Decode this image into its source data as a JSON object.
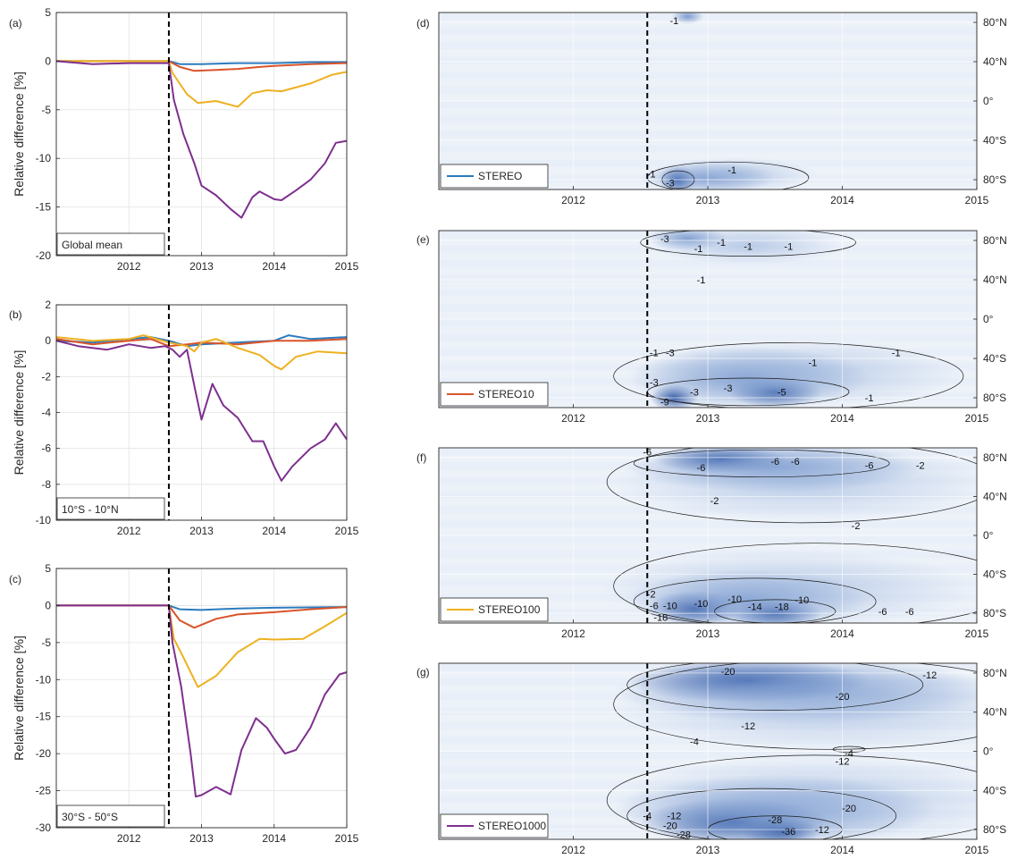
{
  "chart_data": [
    {
      "panel": "(a)",
      "type": "line",
      "region_label": "Global mean",
      "ylabel": "Relative difference [%]",
      "xlim": [
        2011.0,
        2015.0
      ],
      "ylim": [
        -20,
        5
      ],
      "yticks": [
        5,
        0,
        -5,
        -10,
        -15,
        -20
      ],
      "xticks": [
        2012,
        2013,
        2014,
        2015
      ],
      "event_line_x": 2012.55,
      "grid": true,
      "series": [
        {
          "key": "STEREO",
          "color": "#2b7bbd",
          "x": [
            2011.0,
            2012.55,
            2012.7,
            2013.0,
            2013.5,
            2014.0,
            2014.5,
            2015.0
          ],
          "y": [
            0,
            0,
            -0.3,
            -0.3,
            -0.2,
            -0.2,
            -0.1,
            -0.1
          ]
        },
        {
          "key": "STEREO10",
          "color": "#d9542b",
          "x": [
            2011.0,
            2012.55,
            2012.7,
            2012.9,
            2013.2,
            2013.5,
            2013.8,
            2014.0,
            2014.5,
            2015.0
          ],
          "y": [
            0,
            0,
            -0.6,
            -1.0,
            -0.9,
            -0.8,
            -0.6,
            -0.5,
            -0.3,
            -0.2
          ]
        },
        {
          "key": "STEREO100",
          "color": "#edb120",
          "x": [
            2011.0,
            2012.55,
            2012.6,
            2012.8,
            2012.95,
            2013.2,
            2013.5,
            2013.7,
            2013.9,
            2014.1,
            2014.5,
            2014.8,
            2015.0
          ],
          "y": [
            0,
            0,
            -1.2,
            -3.4,
            -4.3,
            -4.1,
            -4.7,
            -3.3,
            -3.0,
            -3.1,
            -2.3,
            -1.4,
            -1.1
          ]
        },
        {
          "key": "STEREO1000",
          "color": "#7e2f8e",
          "x": [
            2011.0,
            2011.5,
            2012.0,
            2012.4,
            2012.55,
            2012.62,
            2012.75,
            2012.9,
            2013.0,
            2013.2,
            2013.4,
            2013.55,
            2013.7,
            2013.8,
            2014.0,
            2014.1,
            2014.3,
            2014.5,
            2014.7,
            2014.85,
            2015.0
          ],
          "y": [
            0,
            -0.3,
            -0.2,
            -0.2,
            -0.2,
            -4.0,
            -7.5,
            -10.5,
            -12.8,
            -13.8,
            -15.2,
            -16.1,
            -14.0,
            -13.4,
            -14.2,
            -14.3,
            -13.3,
            -12.2,
            -10.5,
            -8.4,
            -8.2
          ]
        }
      ]
    },
    {
      "panel": "(b)",
      "type": "line",
      "region_label": "10°S - 10°N",
      "ylabel": "Relative difference [%]",
      "xlim": [
        2011.0,
        2015.0
      ],
      "ylim": [
        -10,
        2
      ],
      "yticks": [
        2,
        0,
        -2,
        -4,
        -6,
        -8,
        -10
      ],
      "xticks": [
        2012,
        2013,
        2014,
        2015
      ],
      "event_line_x": 2012.55,
      "grid": true,
      "series": [
        {
          "key": "STEREO",
          "color": "#2b7bbd",
          "x": [
            2011.0,
            2011.5,
            2012.0,
            2012.3,
            2012.55,
            2012.8,
            2013.0,
            2013.5,
            2014.0,
            2014.2,
            2014.5,
            2015.0
          ],
          "y": [
            0,
            -0.1,
            0.1,
            0.2,
            0,
            -0.3,
            -0.2,
            -0.1,
            0,
            0.3,
            0.1,
            0.2
          ]
        },
        {
          "key": "STEREO10",
          "color": "#d9542b",
          "x": [
            2011.0,
            2011.5,
            2012.0,
            2012.3,
            2012.55,
            2012.8,
            2013.0,
            2013.5,
            2014.0,
            2014.5,
            2015.0
          ],
          "y": [
            0.1,
            -0.2,
            0,
            0.1,
            -0.3,
            -0.2,
            -0.1,
            -0.2,
            0,
            0,
            0.1
          ]
        },
        {
          "key": "STEREO100",
          "color": "#edb120",
          "x": [
            2011.0,
            2011.5,
            2012.0,
            2012.2,
            2012.55,
            2012.8,
            2012.9,
            2013.0,
            2013.2,
            2013.5,
            2013.8,
            2014.0,
            2014.1,
            2014.3,
            2014.6,
            2015.0
          ],
          "y": [
            0.2,
            0,
            0.1,
            0.3,
            -0.1,
            -0.3,
            -0.6,
            -0.1,
            0.1,
            -0.4,
            -0.8,
            -1.4,
            -1.6,
            -0.9,
            -0.6,
            -0.7
          ]
        },
        {
          "key": "STEREO1000",
          "color": "#7e2f8e",
          "x": [
            2011.0,
            2011.3,
            2011.7,
            2012.0,
            2012.3,
            2012.5,
            2012.6,
            2012.7,
            2012.8,
            2012.9,
            2013.0,
            2013.15,
            2013.3,
            2013.5,
            2013.7,
            2013.85,
            2014.0,
            2014.1,
            2014.25,
            2014.5,
            2014.7,
            2014.85,
            2015.0
          ],
          "y": [
            0,
            -0.3,
            -0.5,
            -0.2,
            -0.4,
            -0.3,
            -0.5,
            -0.9,
            -0.5,
            -2.5,
            -4.4,
            -2.4,
            -3.6,
            -4.3,
            -5.6,
            -5.6,
            -7.0,
            -7.8,
            -7.0,
            -6.0,
            -5.5,
            -4.6,
            -5.5
          ]
        }
      ]
    },
    {
      "panel": "(c)",
      "type": "line",
      "region_label": "30°S - 50°S",
      "ylabel": "Relative difference [%]",
      "xlim": [
        2011.0,
        2015.0
      ],
      "ylim": [
        -30,
        5
      ],
      "yticks": [
        5,
        0,
        -5,
        -10,
        -15,
        -20,
        -25,
        -30
      ],
      "xticks": [
        2012,
        2013,
        2014,
        2015
      ],
      "event_line_x": 2012.55,
      "grid": true,
      "series": [
        {
          "key": "STEREO",
          "color": "#2b7bbd",
          "x": [
            2011.0,
            2012.55,
            2012.7,
            2013.0,
            2013.5,
            2014.0,
            2015.0
          ],
          "y": [
            0,
            0,
            -0.5,
            -0.6,
            -0.4,
            -0.3,
            -0.2
          ]
        },
        {
          "key": "STEREO10",
          "color": "#d9542b",
          "x": [
            2011.0,
            2012.55,
            2012.7,
            2012.9,
            2013.2,
            2013.5,
            2014.0,
            2014.5,
            2015.0
          ],
          "y": [
            0,
            0,
            -2.0,
            -3.0,
            -1.8,
            -1.2,
            -0.9,
            -0.5,
            -0.2
          ]
        },
        {
          "key": "STEREO100",
          "color": "#edb120",
          "x": [
            2011.0,
            2012.55,
            2012.62,
            2012.75,
            2012.95,
            2013.2,
            2013.5,
            2013.8,
            2014.0,
            2014.4,
            2014.7,
            2015.0
          ],
          "y": [
            0,
            0,
            -4.5,
            -7.0,
            -11.0,
            -9.5,
            -6.3,
            -4.5,
            -4.6,
            -4.5,
            -2.8,
            -1.0
          ]
        },
        {
          "key": "STEREO1000",
          "color": "#7e2f8e",
          "x": [
            2011.0,
            2012.55,
            2012.6,
            2012.72,
            2012.85,
            2012.92,
            2013.0,
            2013.2,
            2013.4,
            2013.55,
            2013.75,
            2013.9,
            2014.0,
            2014.15,
            2014.3,
            2014.5,
            2014.7,
            2014.9,
            2015.0
          ],
          "y": [
            0,
            0,
            -5.0,
            -11.0,
            -20.0,
            -25.8,
            -25.6,
            -24.5,
            -25.5,
            -19.5,
            -15.2,
            -16.5,
            -18.0,
            -20.0,
            -19.5,
            -16.5,
            -12.0,
            -9.3,
            -9.0
          ]
        }
      ]
    },
    {
      "panel": "(d)",
      "type": "heatmap",
      "legend_label": "STEREO",
      "legend_color": "#2b7bbd",
      "xlim": [
        2011.0,
        2015.0
      ],
      "ylim": [
        -90,
        90
      ],
      "xticks": [
        2012,
        2013,
        2014,
        2015
      ],
      "ytick_labels": [
        "80°N",
        "40°N",
        "0°",
        "40°S",
        "80°S"
      ],
      "ytick_values": [
        80,
        40,
        0,
        -40,
        -80
      ],
      "event_line_x": 2012.55,
      "contour_labels": [
        {
          "text": "-1",
          "x": 2012.75,
          "y": 82
        },
        {
          "text": "-1",
          "x": 2012.58,
          "y": -74
        },
        {
          "text": "-3",
          "x": 2012.72,
          "y": -83
        },
        {
          "text": "-1",
          "x": 2013.18,
          "y": -70
        }
      ]
    },
    {
      "panel": "(e)",
      "type": "heatmap",
      "legend_label": "STEREO10",
      "legend_color": "#d9542b",
      "xlim": [
        2011.0,
        2015.0
      ],
      "ylim": [
        -90,
        90
      ],
      "xticks": [
        2012,
        2013,
        2014,
        2015
      ],
      "ytick_labels": [
        "80°N",
        "40°N",
        "0°",
        "40°S",
        "80°S"
      ],
      "ytick_values": [
        80,
        40,
        0,
        -40,
        -80
      ],
      "event_line_x": 2012.55,
      "contour_labels": [
        {
          "text": "-3",
          "x": 2012.68,
          "y": 82
        },
        {
          "text": "-1",
          "x": 2012.93,
          "y": 72
        },
        {
          "text": "-1",
          "x": 2013.1,
          "y": 78
        },
        {
          "text": "-1",
          "x": 2013.3,
          "y": 74
        },
        {
          "text": "-1",
          "x": 2013.6,
          "y": 74
        },
        {
          "text": "-1",
          "x": 2012.95,
          "y": 40
        },
        {
          "text": "-1",
          "x": 2012.6,
          "y": -34
        },
        {
          "text": "-3",
          "x": 2012.72,
          "y": -34
        },
        {
          "text": "-1",
          "x": 2013.78,
          "y": -44
        },
        {
          "text": "-1",
          "x": 2014.4,
          "y": -34
        },
        {
          "text": "-3",
          "x": 2012.6,
          "y": -64
        },
        {
          "text": "-3",
          "x": 2012.9,
          "y": -74
        },
        {
          "text": "-3",
          "x": 2013.15,
          "y": -70
        },
        {
          "text": "-5",
          "x": 2013.55,
          "y": -74
        },
        {
          "text": "-9",
          "x": 2012.68,
          "y": -84
        },
        {
          "text": "-1",
          "x": 2014.2,
          "y": -80
        }
      ]
    },
    {
      "panel": "(f)",
      "type": "heatmap",
      "legend_label": "STEREO100",
      "legend_color": "#edb120",
      "xlim": [
        2011.0,
        2015.0
      ],
      "ylim": [
        -90,
        90
      ],
      "xticks": [
        2012,
        2013,
        2014,
        2015
      ],
      "ytick_labels": [
        "80°N",
        "40°N",
        "0°",
        "40°S",
        "80°S"
      ],
      "ytick_values": [
        80,
        40,
        0,
        -40,
        -80
      ],
      "event_line_x": 2012.55,
      "contour_labels": [
        {
          "text": "-6",
          "x": 2012.55,
          "y": 86
        },
        {
          "text": "-6",
          "x": 2012.95,
          "y": 70
        },
        {
          "text": "-6",
          "x": 2013.5,
          "y": 76
        },
        {
          "text": "-6",
          "x": 2013.65,
          "y": 76
        },
        {
          "text": "-6",
          "x": 2014.2,
          "y": 72
        },
        {
          "text": "-2",
          "x": 2014.58,
          "y": 72
        },
        {
          "text": "-2",
          "x": 2013.05,
          "y": 36
        },
        {
          "text": "-2",
          "x": 2014.1,
          "y": 10
        },
        {
          "text": "-2",
          "x": 2012.58,
          "y": -60
        },
        {
          "text": "-6",
          "x": 2012.6,
          "y": -72
        },
        {
          "text": "-10",
          "x": 2012.72,
          "y": -72
        },
        {
          "text": "-18",
          "x": 2012.65,
          "y": -84
        },
        {
          "text": "-10",
          "x": 2012.95,
          "y": -70
        },
        {
          "text": "-10",
          "x": 2013.2,
          "y": -65
        },
        {
          "text": "-14",
          "x": 2013.35,
          "y": -73
        },
        {
          "text": "-18",
          "x": 2013.55,
          "y": -73
        },
        {
          "text": "-10",
          "x": 2013.7,
          "y": -66
        },
        {
          "text": "-6",
          "x": 2014.3,
          "y": -78
        },
        {
          "text": "-6",
          "x": 2014.5,
          "y": -78
        }
      ]
    },
    {
      "panel": "(g)",
      "type": "heatmap",
      "legend_label": "STEREO1000",
      "legend_color": "#7e2f8e",
      "xlim": [
        2011.0,
        2015.0
      ],
      "ylim": [
        -90,
        90
      ],
      "xticks": [
        2012,
        2013,
        2014,
        2015
      ],
      "ytick_labels": [
        "80°N",
        "40°N",
        "0°",
        "40°S",
        "80°S"
      ],
      "ytick_values": [
        80,
        40,
        0,
        -40,
        -80
      ],
      "event_line_x": 2012.55,
      "contour_labels": [
        {
          "text": "-20",
          "x": 2013.15,
          "y": 82
        },
        {
          "text": "-20",
          "x": 2014.0,
          "y": 56
        },
        {
          "text": "-12",
          "x": 2014.65,
          "y": 78
        },
        {
          "text": "-12",
          "x": 2013.3,
          "y": 26
        },
        {
          "text": "-4",
          "x": 2012.9,
          "y": 10
        },
        {
          "text": "-4",
          "x": 2014.05,
          "y": -2
        },
        {
          "text": "-12",
          "x": 2014.0,
          "y": -10
        },
        {
          "text": "-4",
          "x": 2012.55,
          "y": -66
        },
        {
          "text": "-12",
          "x": 2012.75,
          "y": -66
        },
        {
          "text": "-20",
          "x": 2012.72,
          "y": -76
        },
        {
          "text": "-28",
          "x": 2012.82,
          "y": -85
        },
        {
          "text": "-28",
          "x": 2013.5,
          "y": -70
        },
        {
          "text": "-36",
          "x": 2013.6,
          "y": -82
        },
        {
          "text": "-12",
          "x": 2013.85,
          "y": -80
        },
        {
          "text": "-20",
          "x": 2014.05,
          "y": -58
        }
      ]
    }
  ]
}
